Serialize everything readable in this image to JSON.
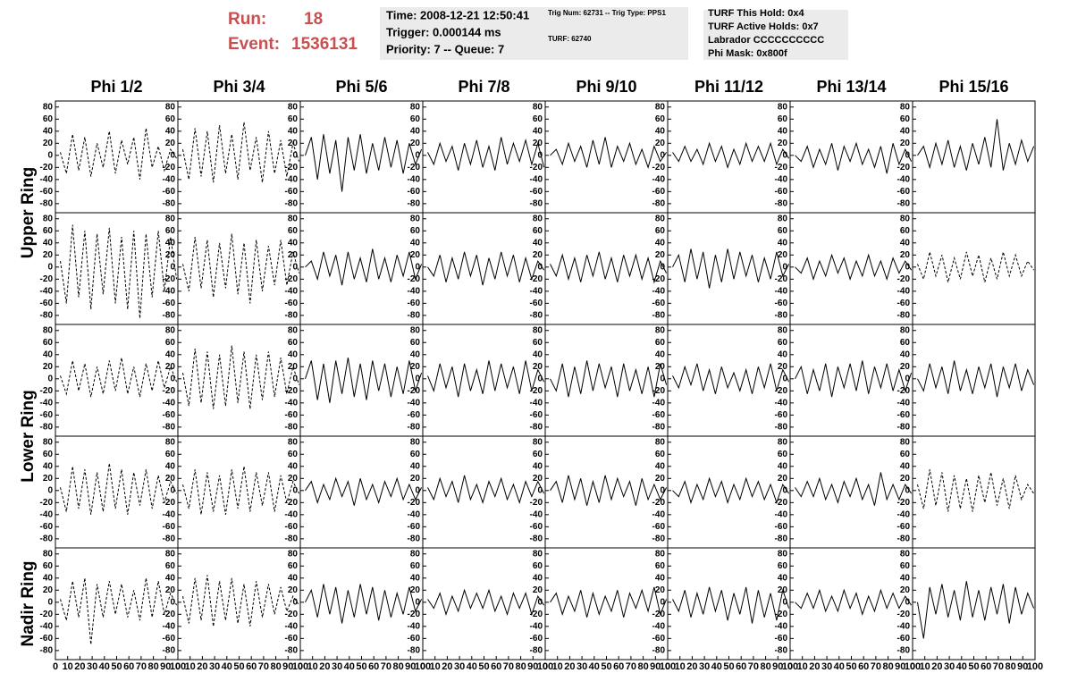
{
  "header": {
    "run_label": "Run:",
    "run": "18",
    "event_label": "Event:",
    "event": "1536131",
    "time": "Time: 2008-12-21 12:50:41",
    "trigger": "Trigger: 0.000144 ms",
    "priority": "Priority: 7 -- Queue: 7",
    "trig_num": "Trig Num: 62731 -- Trig Type: PPS1",
    "turf": "TURF: 62740",
    "turf_hold": "TURF This Hold: 0x4",
    "turf_active": "TURF Active Holds: 0x7",
    "labrador": "Labrador CCCCCCCCCC",
    "phi_mask": "Phi Mask: 0x800f"
  },
  "chart_data": {
    "type": "line",
    "columns": [
      "Phi 1/2",
      "Phi 3/4",
      "Phi 5/6",
      "Phi 7/8",
      "Phi 9/10",
      "Phi 11/12",
      "Phi 13/14",
      "Phi 15/16"
    ],
    "rings": [
      "Upper Ring",
      "Lower Ring",
      "Nadir Ring"
    ],
    "color": "#000000",
    "xlim": [
      0,
      100
    ],
    "xticks": [
      0,
      10,
      20,
      30,
      40,
      50,
      60,
      70,
      80,
      90,
      100
    ],
    "ylim": [
      -95,
      90
    ],
    "yticks": [
      80,
      60,
      40,
      20,
      0,
      -20,
      -40,
      -60,
      -80
    ],
    "x": [
      4,
      9,
      14,
      19,
      24,
      29,
      34,
      39,
      44,
      49,
      54,
      59,
      64,
      69,
      74,
      79,
      84,
      89,
      94,
      99
    ],
    "panels": [
      {
        "dashed": true,
        "values": [
          5,
          -30,
          35,
          -25,
          30,
          -35,
          20,
          -20,
          40,
          -30,
          25,
          -15,
          30,
          -40,
          45,
          -20,
          15,
          -25,
          10,
          -5
        ]
      },
      {
        "dashed": true,
        "values": [
          10,
          -40,
          45,
          -35,
          40,
          -45,
          50,
          -30,
          35,
          -40,
          55,
          -25,
          30,
          -45,
          40,
          -30,
          25,
          -35,
          20,
          -10
        ]
      },
      {
        "dashed": false,
        "values": [
          0,
          30,
          -40,
          35,
          -30,
          25,
          -60,
          30,
          -25,
          35,
          -30,
          20,
          -25,
          30,
          -20,
          25,
          -30,
          20,
          -15,
          10
        ]
      },
      {
        "dashed": false,
        "values": [
          5,
          -15,
          20,
          -10,
          15,
          -25,
          20,
          -15,
          25,
          -20,
          15,
          -25,
          30,
          -15,
          20,
          -10,
          25,
          -15,
          20,
          -20
        ]
      },
      {
        "dashed": false,
        "values": [
          0,
          10,
          -15,
          20,
          -10,
          15,
          -20,
          25,
          -15,
          30,
          -20,
          15,
          -10,
          20,
          -15,
          10,
          -20,
          15,
          -10,
          5
        ]
      },
      {
        "dashed": false,
        "values": [
          5,
          -10,
          15,
          -10,
          10,
          -15,
          20,
          -10,
          15,
          -20,
          10,
          -15,
          20,
          -10,
          15,
          -10,
          20,
          -15,
          10,
          -5
        ]
      },
      {
        "dashed": false,
        "values": [
          0,
          -10,
          15,
          -20,
          10,
          -15,
          20,
          -25,
          15,
          -10,
          20,
          -15,
          10,
          -20,
          15,
          -30,
          20,
          -15,
          10,
          -10
        ]
      },
      {
        "dashed": false,
        "values": [
          0,
          15,
          -20,
          20,
          -15,
          25,
          -20,
          15,
          -25,
          20,
          -15,
          30,
          -20,
          60,
          -25,
          20,
          -15,
          25,
          -10,
          15
        ]
      },
      {
        "dashed": true,
        "values": [
          10,
          -60,
          70,
          -50,
          60,
          -70,
          55,
          -45,
          65,
          -60,
          50,
          -70,
          60,
          -85,
          55,
          -50,
          60,
          -40,
          50,
          -20
        ]
      },
      {
        "dashed": true,
        "values": [
          5,
          -40,
          50,
          -35,
          45,
          -50,
          40,
          -35,
          55,
          -45,
          40,
          -60,
          45,
          -40,
          35,
          -30,
          45,
          -30,
          25,
          -10
        ]
      },
      {
        "dashed": false,
        "values": [
          0,
          10,
          -20,
          25,
          -15,
          20,
          -30,
          25,
          -20,
          15,
          -25,
          30,
          -20,
          15,
          -25,
          20,
          -15,
          25,
          -20,
          5
        ]
      },
      {
        "dashed": false,
        "values": [
          0,
          -15,
          20,
          -25,
          15,
          -20,
          25,
          -15,
          20,
          -30,
          15,
          -20,
          25,
          -15,
          20,
          -25,
          15,
          -20,
          10,
          -5
        ]
      },
      {
        "dashed": false,
        "values": [
          5,
          -15,
          20,
          -20,
          15,
          -25,
          20,
          -15,
          25,
          -20,
          15,
          -25,
          20,
          -15,
          20,
          -20,
          15,
          -25,
          10,
          -10
        ]
      },
      {
        "dashed": false,
        "values": [
          0,
          20,
          -25,
          30,
          -20,
          25,
          -35,
          20,
          -25,
          30,
          -20,
          25,
          -15,
          20,
          -25,
          15,
          -20,
          25,
          -15,
          5
        ]
      },
      {
        "dashed": false,
        "values": [
          0,
          -10,
          15,
          -20,
          10,
          -15,
          20,
          -10,
          15,
          -20,
          10,
          -15,
          20,
          -15,
          10,
          -20,
          15,
          -10,
          10,
          -5
        ]
      },
      {
        "dashed": true,
        "values": [
          5,
          -20,
          25,
          -15,
          20,
          -25,
          15,
          -20,
          25,
          -15,
          20,
          -25,
          15,
          -20,
          25,
          -15,
          20,
          -15,
          10,
          -5
        ]
      },
      {
        "dashed": true,
        "values": [
          5,
          -25,
          30,
          -20,
          25,
          -30,
          20,
          -25,
          30,
          -20,
          35,
          -25,
          20,
          -30,
          25,
          -20,
          30,
          -15,
          20,
          -5
        ]
      },
      {
        "dashed": true,
        "values": [
          10,
          -45,
          50,
          -40,
          45,
          -50,
          40,
          -45,
          55,
          -40,
          45,
          -50,
          40,
          -35,
          45,
          -30,
          35,
          -25,
          20,
          -10
        ]
      },
      {
        "dashed": false,
        "values": [
          0,
          30,
          -35,
          25,
          -40,
          30,
          -25,
          35,
          -30,
          25,
          -35,
          30,
          -20,
          25,
          -30,
          20,
          -25,
          30,
          -20,
          10
        ]
      },
      {
        "dashed": false,
        "values": [
          5,
          -20,
          25,
          -15,
          20,
          -30,
          25,
          -20,
          15,
          -25,
          30,
          -20,
          25,
          -15,
          20,
          -25,
          30,
          -20,
          15,
          -5
        ]
      },
      {
        "dashed": false,
        "values": [
          0,
          -20,
          25,
          -30,
          20,
          -25,
          30,
          -20,
          25,
          -15,
          20,
          -30,
          25,
          -20,
          15,
          -25,
          20,
          -30,
          25,
          -10
        ]
      },
      {
        "dashed": false,
        "values": [
          5,
          -15,
          20,
          -10,
          25,
          -20,
          15,
          -25,
          20,
          -15,
          10,
          -20,
          15,
          -25,
          20,
          -15,
          25,
          -20,
          15,
          -5
        ]
      },
      {
        "dashed": false,
        "values": [
          0,
          20,
          -25,
          15,
          -20,
          25,
          -30,
          20,
          -15,
          25,
          -20,
          30,
          -25,
          20,
          -15,
          25,
          -20,
          15,
          -20,
          10
        ]
      },
      {
        "dashed": false,
        "values": [
          0,
          -20,
          25,
          -15,
          20,
          -25,
          30,
          -20,
          15,
          -25,
          20,
          -15,
          25,
          -30,
          20,
          -15,
          25,
          -20,
          15,
          -10
        ]
      },
      {
        "dashed": true,
        "values": [
          5,
          -35,
          40,
          -30,
          35,
          -40,
          30,
          -35,
          45,
          -30,
          35,
          -40,
          30,
          -25,
          35,
          -30,
          25,
          -20,
          15,
          -5
        ]
      },
      {
        "dashed": true,
        "values": [
          10,
          -30,
          35,
          -40,
          30,
          -35,
          25,
          -40,
          35,
          -30,
          40,
          -35,
          30,
          -25,
          30,
          -35,
          25,
          -20,
          15,
          -5
        ]
      },
      {
        "dashed": false,
        "values": [
          0,
          15,
          -20,
          10,
          -15,
          20,
          -10,
          15,
          -25,
          20,
          -15,
          10,
          -20,
          15,
          -10,
          20,
          -15,
          10,
          -15,
          5
        ]
      },
      {
        "dashed": false,
        "values": [
          5,
          -15,
          20,
          -10,
          15,
          -20,
          25,
          -15,
          10,
          -20,
          15,
          -10,
          20,
          -15,
          10,
          -20,
          15,
          -10,
          15,
          -5
        ]
      },
      {
        "dashed": false,
        "values": [
          0,
          15,
          -20,
          25,
          -15,
          20,
          -25,
          15,
          -20,
          25,
          -15,
          20,
          -10,
          15,
          -25,
          20,
          -15,
          10,
          -15,
          5
        ]
      },
      {
        "dashed": false,
        "values": [
          0,
          -10,
          15,
          -20,
          10,
          -15,
          20,
          -10,
          15,
          -20,
          10,
          -15,
          20,
          -10,
          15,
          -15,
          10,
          -20,
          10,
          -5
        ]
      },
      {
        "dashed": false,
        "values": [
          5,
          -10,
          15,
          -10,
          20,
          -15,
          10,
          -20,
          15,
          -10,
          20,
          -15,
          10,
          -25,
          30,
          -15,
          10,
          -15,
          10,
          -5
        ]
      },
      {
        "dashed": true,
        "values": [
          10,
          -30,
          35,
          -25,
          30,
          -35,
          25,
          -30,
          20,
          -35,
          25,
          -20,
          30,
          -25,
          20,
          -30,
          25,
          -15,
          10,
          -5
        ]
      },
      {
        "dashed": true,
        "values": [
          5,
          -30,
          35,
          -25,
          40,
          -70,
          30,
          -25,
          35,
          -20,
          30,
          -25,
          20,
          -30,
          40,
          -25,
          35,
          -20,
          15,
          -5
        ]
      },
      {
        "dashed": true,
        "values": [
          10,
          -35,
          40,
          -30,
          45,
          -40,
          35,
          -30,
          40,
          -35,
          30,
          -40,
          35,
          -25,
          30,
          -20,
          25,
          -15,
          10,
          -5
        ]
      },
      {
        "dashed": false,
        "values": [
          0,
          20,
          -25,
          30,
          -20,
          25,
          -35,
          20,
          -25,
          30,
          -20,
          25,
          -30,
          20,
          -25,
          15,
          -20,
          25,
          -15,
          5
        ]
      },
      {
        "dashed": false,
        "values": [
          5,
          -10,
          15,
          -20,
          10,
          -15,
          20,
          -10,
          15,
          -10,
          20,
          -15,
          10,
          -20,
          15,
          -10,
          15,
          -20,
          10,
          -5
        ]
      },
      {
        "dashed": false,
        "values": [
          0,
          15,
          -20,
          10,
          -15,
          20,
          -25,
          15,
          -20,
          10,
          -15,
          20,
          -25,
          15,
          -10,
          20,
          -15,
          25,
          -20,
          5
        ]
      },
      {
        "dashed": false,
        "values": [
          5,
          -15,
          20,
          -25,
          15,
          -20,
          25,
          -15,
          20,
          -30,
          15,
          -20,
          25,
          -35,
          20,
          -25,
          15,
          -30,
          20,
          -10
        ]
      },
      {
        "dashed": false,
        "values": [
          0,
          -10,
          15,
          -10,
          20,
          -15,
          10,
          -15,
          20,
          -10,
          15,
          -20,
          10,
          -15,
          20,
          -10,
          15,
          -10,
          10,
          -5
        ]
      },
      {
        "dashed": false,
        "values": [
          0,
          -60,
          25,
          -20,
          30,
          -25,
          20,
          -30,
          35,
          -25,
          20,
          -30,
          25,
          -20,
          30,
          -35,
          25,
          -20,
          15,
          -10
        ]
      }
    ]
  }
}
